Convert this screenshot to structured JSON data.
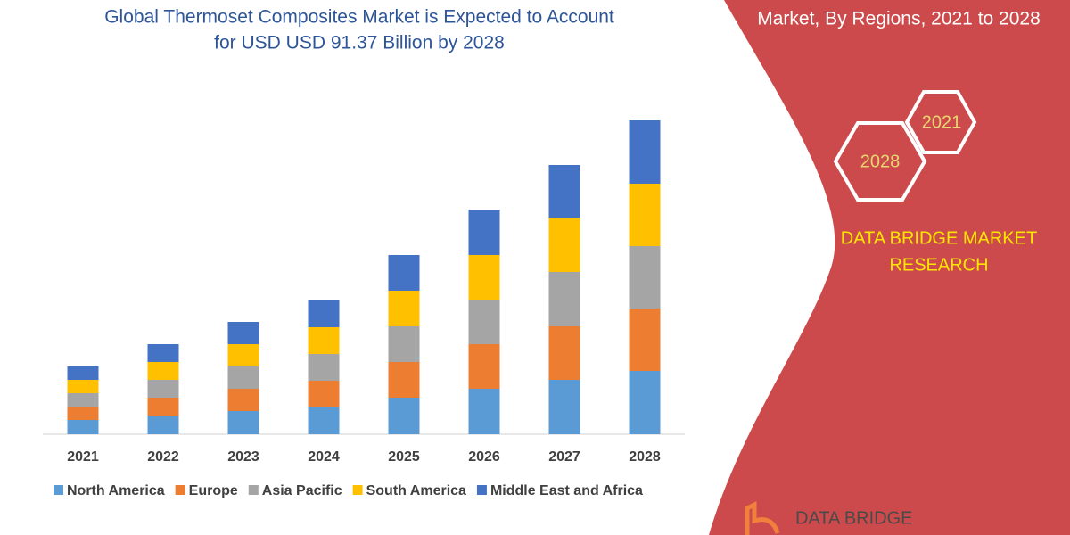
{
  "chart_data": {
    "type": "stacked_bar",
    "title": [
      "Global Thermoset Composites Market is Expected to Account",
      "for USD USD 91.37 Billion by 2028"
    ],
    "categories": [
      "2021",
      "2022",
      "2023",
      "2024",
      "2025",
      "2026",
      "2027",
      "2028"
    ],
    "series": [
      {
        "name": "North America",
        "color": "#5b9bd5",
        "values": [
          16,
          21,
          26,
          30,
          41,
          51,
          61,
          71
        ]
      },
      {
        "name": "Europe",
        "color": "#ed7d31",
        "values": [
          15,
          20,
          25,
          30,
          40,
          50,
          60,
          70
        ]
      },
      {
        "name": "Asia Pacific",
        "color": "#a5a5a5",
        "values": [
          15,
          20,
          25,
          30,
          40,
          50,
          61,
          70
        ]
      },
      {
        "name": "South America",
        "color": "#ffc000",
        "values": [
          15,
          20,
          25,
          30,
          40,
          50,
          60,
          70
        ]
      },
      {
        "name": "Middle East and Africa",
        "color": "#4472c4",
        "values": [
          15,
          20,
          25,
          31,
          40,
          51,
          60,
          71
        ]
      }
    ],
    "ylim": [
      0,
      370
    ]
  },
  "side_panel": {
    "subtitle": "Market, By Regions, 2021 to 2028",
    "hex_labels": [
      "2021",
      "2028"
    ],
    "brand": [
      "DATA BRIDGE MARKET",
      "RESEARCH"
    ],
    "logo": "DATA BRIDGE"
  }
}
